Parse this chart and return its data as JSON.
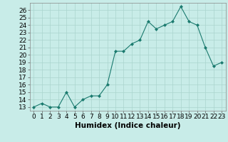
{
  "x": [
    0,
    1,
    2,
    3,
    4,
    5,
    6,
    7,
    8,
    9,
    10,
    11,
    12,
    13,
    14,
    15,
    16,
    17,
    18,
    19,
    20,
    21,
    22,
    23
  ],
  "y": [
    13,
    13.5,
    13,
    13,
    15,
    13,
    14,
    14.5,
    14.5,
    16,
    20.5,
    20.5,
    21.5,
    22,
    24.5,
    23.5,
    24,
    24.5,
    26.5,
    24.5,
    24,
    21,
    18.5,
    19
  ],
  "line_color": "#1a7a6e",
  "marker_color": "#1a7a6e",
  "bg_color": "#c8ece8",
  "grid_color": "#aad4ce",
  "xlabel": "Humidex (Indice chaleur)",
  "xlim": [
    -0.5,
    23.5
  ],
  "ylim": [
    12.5,
    27
  ],
  "yticks": [
    13,
    14,
    15,
    16,
    17,
    18,
    19,
    20,
    21,
    22,
    23,
    24,
    25,
    26
  ],
  "xtick_labels": [
    "0",
    "1",
    "2",
    "3",
    "4",
    "5",
    "6",
    "7",
    "8",
    "9",
    "10",
    "11",
    "12",
    "13",
    "14",
    "15",
    "16",
    "17",
    "18",
    "19",
    "20",
    "21",
    "22",
    "23"
  ],
  "font_size": 6.5,
  "xlabel_font_size": 7.5
}
